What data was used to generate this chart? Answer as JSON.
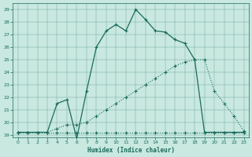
{
  "xlabel": "Humidex (Indice chaleur)",
  "bg_color": "#c8e8e0",
  "line_color": "#1a6b5a",
  "xlim": [
    -0.5,
    23.5
  ],
  "ylim": [
    18.8,
    29.5
  ],
  "xticks": [
    0,
    1,
    2,
    3,
    4,
    5,
    6,
    7,
    8,
    9,
    10,
    11,
    12,
    13,
    14,
    15,
    16,
    17,
    18,
    19,
    20,
    21,
    22,
    23
  ],
  "yticks": [
    19,
    20,
    21,
    22,
    23,
    24,
    25,
    26,
    27,
    28,
    29
  ],
  "line1_x": [
    0,
    1,
    2,
    3,
    4,
    5,
    6,
    7,
    8,
    9,
    10,
    11,
    12,
    13,
    14,
    15,
    16,
    17,
    18,
    19,
    20,
    21,
    22,
    23
  ],
  "line1_y": [
    19.2,
    19.2,
    19.2,
    19.2,
    19.2,
    19.2,
    19.2,
    19.2,
    19.2,
    19.2,
    19.2,
    19.2,
    19.2,
    19.2,
    19.2,
    19.2,
    19.2,
    19.2,
    19.2,
    19.2,
    19.2,
    19.2,
    19.2,
    19.2
  ],
  "line2_x": [
    0,
    1,
    2,
    3,
    4,
    5,
    6,
    7,
    8,
    9,
    10,
    11,
    12,
    13,
    14,
    15,
    16,
    17,
    18,
    19,
    20,
    21,
    22,
    23
  ],
  "line2_y": [
    19.2,
    19.2,
    19.2,
    19.2,
    19.5,
    19.8,
    19.8,
    20.0,
    20.5,
    21.0,
    21.5,
    22.0,
    22.5,
    23.0,
    23.5,
    24.0,
    24.5,
    24.8,
    25.0,
    25.0,
    22.5,
    21.5,
    20.5,
    19.3
  ],
  "line3_x": [
    0,
    1,
    2,
    3,
    4,
    5,
    6,
    7,
    8,
    9,
    10,
    11,
    12,
    13,
    14,
    15,
    16,
    17,
    18,
    19,
    20,
    21,
    22,
    23
  ],
  "line3_y": [
    19.2,
    19.2,
    19.2,
    19.2,
    21.5,
    21.8,
    18.7,
    22.5,
    26.0,
    27.3,
    27.8,
    27.3,
    29.0,
    28.2,
    27.3,
    27.2,
    26.6,
    26.3,
    25.0,
    19.2,
    19.2,
    19.2,
    19.2,
    19.2
  ]
}
